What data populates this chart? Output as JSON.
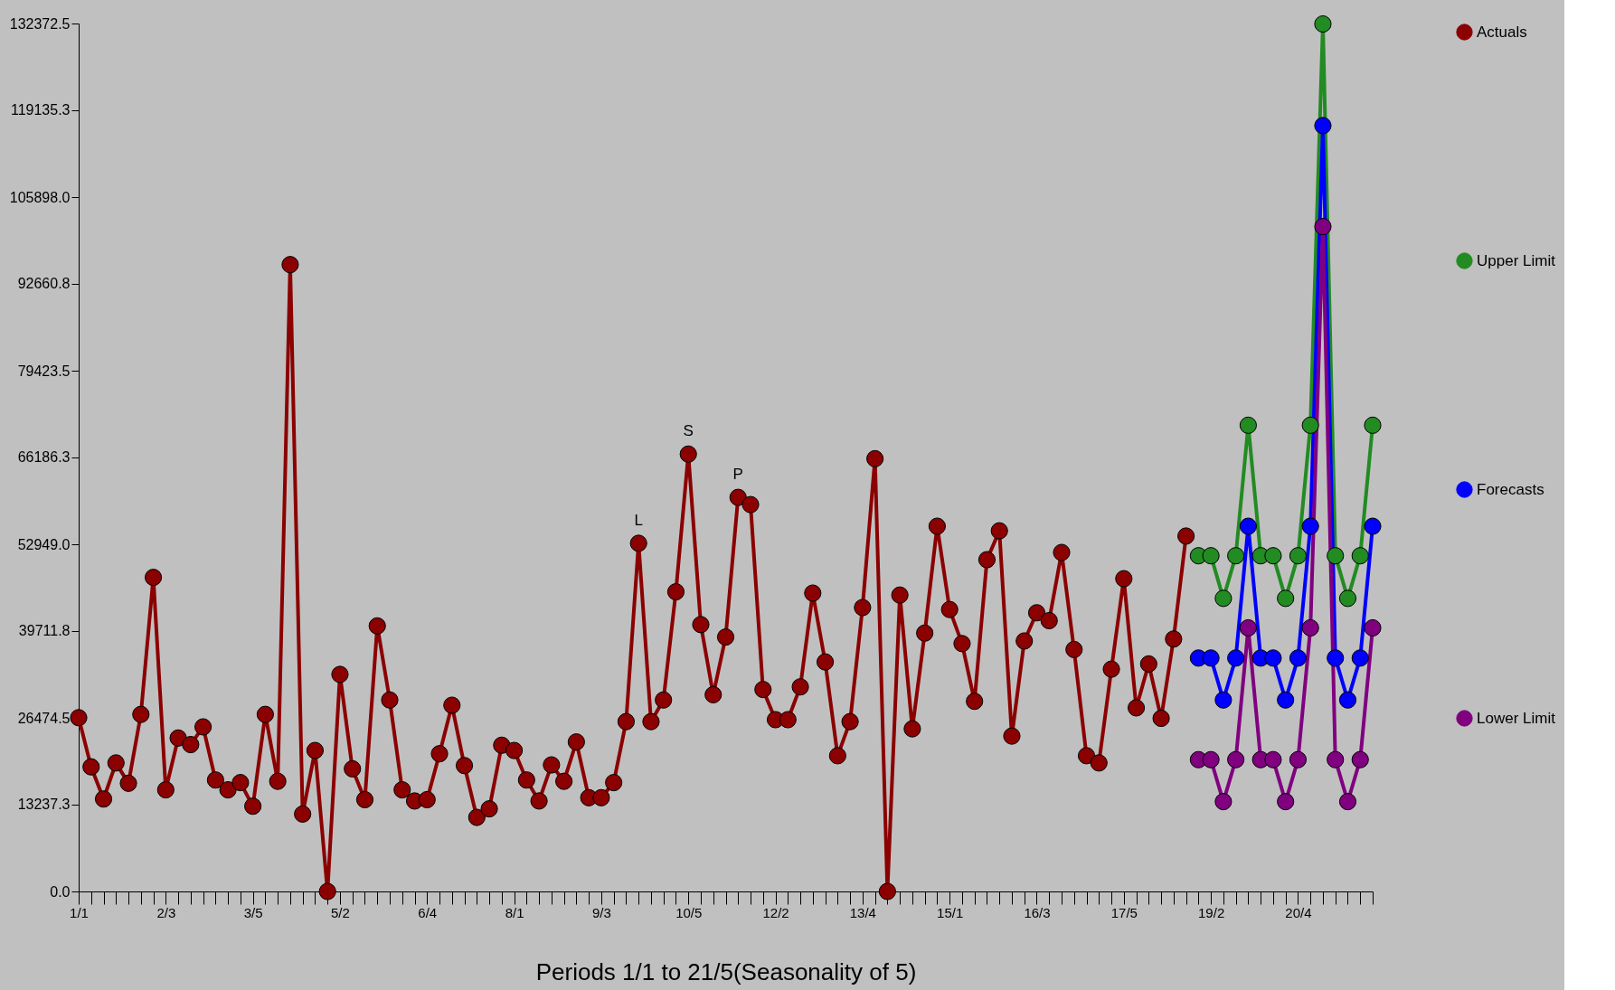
{
  "chart_data": {
    "type": "line",
    "xlabel": "Periods 1/1 to 21/5(Seasonality of 5)",
    "marker": "circle",
    "line_style": "solid",
    "legend": "right",
    "grid": false,
    "ylim": [
      0,
      132372.5
    ],
    "yticks": [
      {
        "value": 0,
        "label": "0.0"
      },
      {
        "value": 13237.3,
        "label": "13237.3"
      },
      {
        "value": 26474.5,
        "label": "26474.5"
      },
      {
        "value": 39711.8,
        "label": "39711.8"
      },
      {
        "value": 52949.0,
        "label": "52949.0"
      },
      {
        "value": 66186.3,
        "label": "66186.3"
      },
      {
        "value": 79423.5,
        "label": "79423.5"
      },
      {
        "value": 92660.8,
        "label": "92660.8"
      },
      {
        "value": 105898.0,
        "label": "105898.0"
      },
      {
        "value": 119135.3,
        "label": "119135.3"
      },
      {
        "value": 132372.5,
        "label": "132372.5"
      }
    ],
    "categories": [
      "1/1",
      null,
      null,
      null,
      null,
      null,
      null,
      "2/3",
      null,
      null,
      null,
      null,
      null,
      null,
      "3/5",
      null,
      null,
      null,
      null,
      null,
      null,
      "5/2",
      null,
      null,
      null,
      null,
      null,
      null,
      "6/4",
      null,
      null,
      null,
      null,
      null,
      null,
      "8/1",
      null,
      null,
      null,
      null,
      null,
      null,
      "9/3",
      null,
      null,
      null,
      null,
      null,
      null,
      "10/5",
      null,
      null,
      null,
      null,
      null,
      null,
      "12/2",
      null,
      null,
      null,
      null,
      null,
      null,
      "13/4",
      null,
      null,
      null,
      null,
      null,
      null,
      "15/1",
      null,
      null,
      null,
      null,
      null,
      null,
      "16/3",
      null,
      null,
      null,
      null,
      null,
      null,
      "17/5",
      null,
      null,
      null,
      null,
      null,
      null,
      "19/2",
      null,
      null,
      null,
      null,
      null,
      null,
      "20/4",
      null,
      null,
      null,
      null,
      null,
      null
    ],
    "series": [
      {
        "name": "Actuals",
        "color": "#8b0000",
        "values": [
          26500,
          19000,
          14100,
          19600,
          16500,
          27000,
          47900,
          15500,
          23400,
          22400,
          25100,
          17000,
          15500,
          16600,
          13000,
          27000,
          16800,
          95600,
          11800,
          21500,
          0,
          33100,
          18700,
          14000,
          40500,
          29200,
          15500,
          13800,
          14000,
          21000,
          28400,
          19200,
          11300,
          12600,
          22300,
          21500,
          17000,
          13800,
          19300,
          16800,
          22800,
          14300,
          14300,
          16600,
          25900,
          53100,
          25900,
          29200,
          45700,
          66700,
          40700,
          30000,
          38800,
          60100,
          59000,
          30800,
          26200,
          26200,
          31200,
          45500,
          35000,
          20700,
          25900,
          43300,
          66000,
          0,
          45200,
          24800,
          39400,
          55700,
          43000,
          37800,
          29000,
          50600,
          55000,
          23700,
          38200,
          42500,
          41300,
          51700,
          36900,
          20700,
          19600,
          33900,
          47700,
          28000,
          34700,
          26400,
          38500,
          54200,
          null,
          null,
          null,
          null,
          null,
          null,
          null,
          null,
          null,
          null,
          null,
          null,
          null,
          null,
          null
        ]
      },
      {
        "name": "Upper Limit",
        "color": "#228b22",
        "values": [
          null,
          null,
          null,
          null,
          null,
          null,
          null,
          null,
          null,
          null,
          null,
          null,
          null,
          null,
          null,
          null,
          null,
          null,
          null,
          null,
          null,
          null,
          null,
          null,
          null,
          null,
          null,
          null,
          null,
          null,
          null,
          null,
          null,
          null,
          null,
          null,
          null,
          null,
          null,
          null,
          null,
          null,
          null,
          null,
          null,
          null,
          null,
          null,
          null,
          null,
          null,
          null,
          null,
          null,
          null,
          null,
          null,
          null,
          null,
          null,
          null,
          null,
          null,
          null,
          null,
          null,
          null,
          null,
          null,
          null,
          null,
          null,
          null,
          null,
          null,
          null,
          null,
          null,
          null,
          null,
          null,
          null,
          null,
          null,
          null,
          null,
          null,
          null,
          null,
          null,
          51200,
          51200,
          44700,
          51200,
          71100,
          51200,
          51200,
          44700,
          51200,
          71100,
          132300,
          51200,
          44700,
          51200,
          71100
        ]
      },
      {
        "name": "Forecasts",
        "color": "#0000ff",
        "values": [
          null,
          null,
          null,
          null,
          null,
          null,
          null,
          null,
          null,
          null,
          null,
          null,
          null,
          null,
          null,
          null,
          null,
          null,
          null,
          null,
          null,
          null,
          null,
          null,
          null,
          null,
          null,
          null,
          null,
          null,
          null,
          null,
          null,
          null,
          null,
          null,
          null,
          null,
          null,
          null,
          null,
          null,
          null,
          null,
          null,
          null,
          null,
          null,
          null,
          null,
          null,
          null,
          null,
          null,
          null,
          null,
          null,
          null,
          null,
          null,
          null,
          null,
          null,
          null,
          null,
          null,
          null,
          null,
          null,
          null,
          null,
          null,
          null,
          null,
          null,
          null,
          null,
          null,
          null,
          null,
          null,
          null,
          null,
          null,
          null,
          null,
          null,
          null,
          null,
          null,
          35600,
          35600,
          29200,
          35600,
          55700,
          35600,
          35600,
          29200,
          35600,
          55700,
          116800,
          35600,
          29200,
          35600,
          55700
        ]
      },
      {
        "name": "Lower Limit",
        "color": "#800080",
        "values": [
          null,
          null,
          null,
          null,
          null,
          null,
          null,
          null,
          null,
          null,
          null,
          null,
          null,
          null,
          null,
          null,
          null,
          null,
          null,
          null,
          null,
          null,
          null,
          null,
          null,
          null,
          null,
          null,
          null,
          null,
          null,
          null,
          null,
          null,
          null,
          null,
          null,
          null,
          null,
          null,
          null,
          null,
          null,
          null,
          null,
          null,
          null,
          null,
          null,
          null,
          null,
          null,
          null,
          null,
          null,
          null,
          null,
          null,
          null,
          null,
          null,
          null,
          null,
          null,
          null,
          null,
          null,
          null,
          null,
          null,
          null,
          null,
          null,
          null,
          null,
          null,
          null,
          null,
          null,
          null,
          null,
          null,
          null,
          null,
          null,
          null,
          null,
          null,
          null,
          null,
          20100,
          20100,
          13700,
          20100,
          40200,
          20100,
          20100,
          13700,
          20100,
          40200,
          101400,
          20100,
          13700,
          20100,
          40200
        ]
      }
    ],
    "annotations": [
      {
        "text": "L",
        "y": 53100
      },
      {
        "text": "S",
        "y": 66700
      },
      {
        "text": "P",
        "y": 60100
      }
    ]
  }
}
